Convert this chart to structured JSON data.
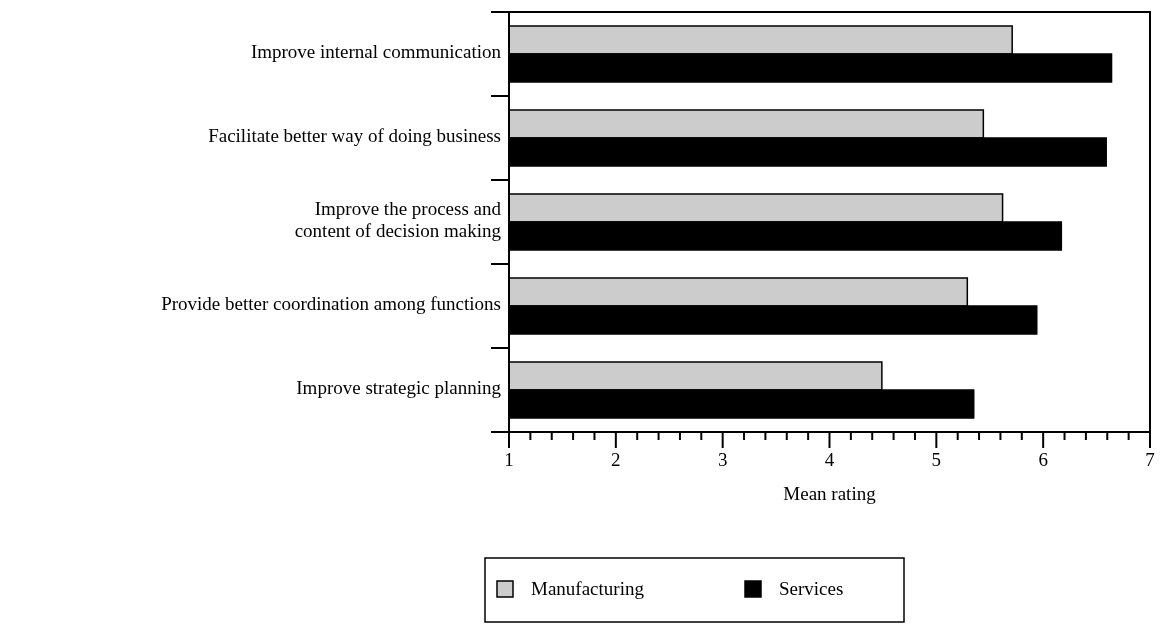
{
  "chart_data": {
    "type": "bar",
    "orientation": "horizontal",
    "xlabel": "Mean rating",
    "categories": [
      "Improve internal communication",
      "Facilitate better way of doing business",
      "Improve the process and\ncontent of decision making",
      "Provide better coordination among functions",
      "Improve strategic planning"
    ],
    "series": [
      {
        "name": "Manufacturing",
        "color": "#cccccc",
        "values": [
          5.71,
          5.44,
          5.62,
          5.29,
          4.49
        ]
      },
      {
        "name": "Services",
        "color": "#000000",
        "values": [
          6.64,
          6.59,
          6.17,
          5.94,
          5.35
        ]
      }
    ],
    "xlim": [
      1,
      7
    ],
    "xticks": [
      1,
      {
        "value": 1.2,
        "label": null
      },
      {
        "value": 1.4,
        "label": null
      },
      {
        "value": 1.6,
        "label": null
      },
      {
        "value": 1.8,
        "label": null
      },
      2,
      {
        "value": 2.2,
        "label": null
      },
      {
        "value": 2.4,
        "label": null
      },
      {
        "value": 2.6,
        "label": null
      },
      {
        "value": 2.8,
        "label": null
      },
      3,
      {
        "value": 3.2,
        "label": null
      },
      {
        "value": 3.4,
        "label": null
      },
      {
        "value": 3.6,
        "label": null
      },
      {
        "value": 3.8,
        "label": null
      },
      4,
      {
        "value": 4.2,
        "label": null
      },
      {
        "value": 4.4,
        "label": null
      },
      {
        "value": 4.6,
        "label": null
      },
      {
        "value": 4.8,
        "label": null
      },
      5,
      {
        "value": 5.2,
        "label": null
      },
      {
        "value": 5.4,
        "label": null
      },
      {
        "value": 5.6,
        "label": null
      },
      {
        "value": 5.8,
        "label": null
      },
      6,
      {
        "value": 6.2,
        "label": null
      },
      {
        "value": 6.4,
        "label": null
      },
      {
        "value": 6.6,
        "label": null
      },
      {
        "value": 6.8,
        "label": null
      },
      7
    ],
    "legend": "bottom",
    "grid": false
  }
}
